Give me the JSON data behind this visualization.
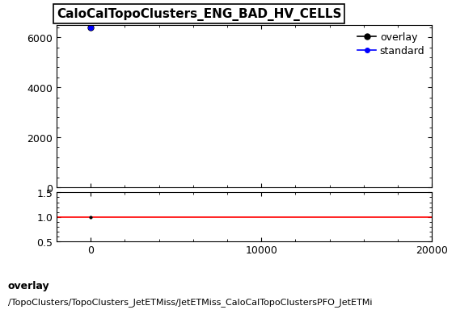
{
  "title": "CaloCalTopoClusters_ENG_BAD_HV_CELLS",
  "overlay_x": [
    0
  ],
  "overlay_y": [
    6404
  ],
  "standard_x": [
    0
  ],
  "standard_y": [
    6404
  ],
  "overlay_color": "#000000",
  "standard_color": "#0000ff",
  "ratio_y": 1.0,
  "ratio_color": "#ff0000",
  "xlim": [
    -2000,
    20000
  ],
  "ylim_main": [
    0,
    6500
  ],
  "ylim_ratio": [
    0.5,
    1.5
  ],
  "xticks": [
    0,
    10000,
    20000
  ],
  "yticks_main": [
    0,
    2000,
    4000,
    6000
  ],
  "yticks_ratio": [
    0.5,
    1.0,
    1.5
  ],
  "legend_labels": [
    "overlay",
    "standard"
  ],
  "footer_line1": "overlay",
  "footer_line2": "/TopoClusters/TopoClusters_JetETMiss/JetETMiss_CaloCalTopoClustersPFO_JetETMi",
  "title_fontsize": 11,
  "tick_fontsize": 9,
  "legend_fontsize": 9,
  "footer_fontsize": 8,
  "marker_size": 5,
  "line_width": 1.2,
  "background_color": "#ffffff"
}
